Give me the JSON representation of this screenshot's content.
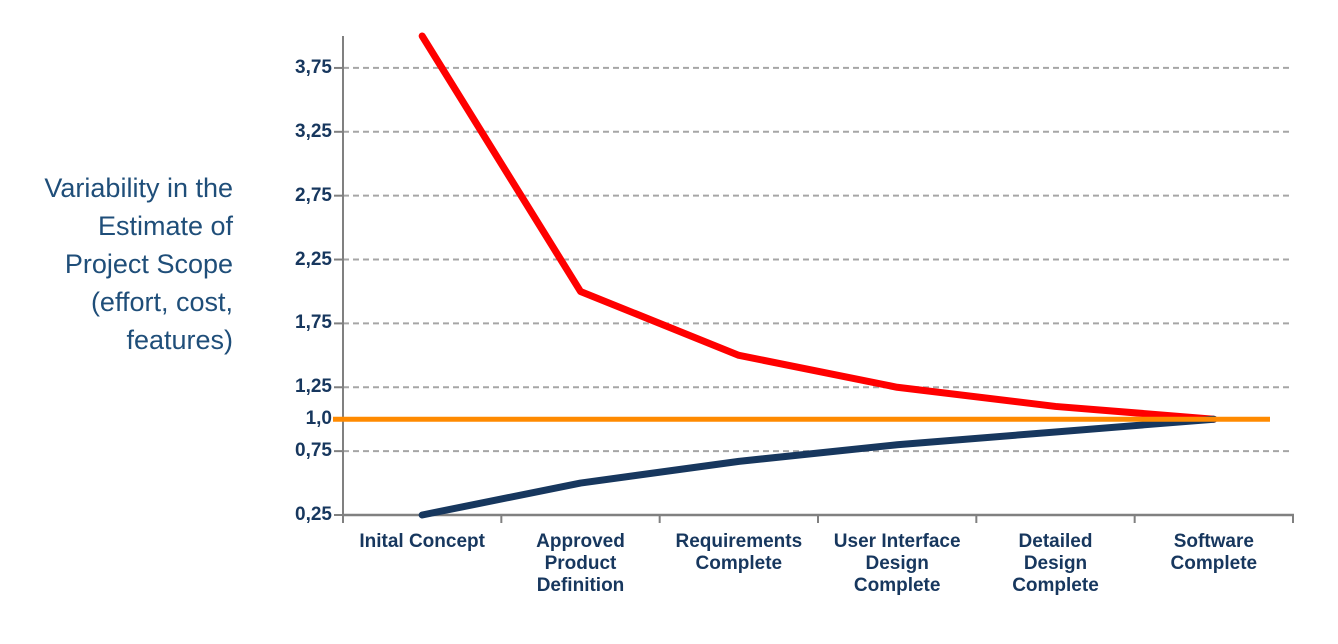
{
  "page": {
    "background_color": "#FFFFFF"
  },
  "side_label": {
    "lines": [
      "Variability in the",
      "Estimate of",
      "Project Scope",
      "(effort, cost,",
      "features)"
    ],
    "color": "#1F4E79"
  },
  "chart_data": {
    "type": "line",
    "title": "",
    "xlabel": "",
    "ylabel": "Variability in the Estimate of Project Scope (effort, cost, features)",
    "categories": [
      "Inital Concept",
      "Approved Product Definition",
      "Requirements Complete",
      "User Interface Design Complete",
      "Detailed Design Complete",
      "Software Complete"
    ],
    "category_label_lines": [
      [
        "Inital Concept"
      ],
      [
        "Approved",
        "Product",
        "Definition"
      ],
      [
        "Requirements",
        "Complete"
      ],
      [
        "User Interface",
        "Design",
        "Complete"
      ],
      [
        "Detailed",
        "Design",
        "Complete"
      ],
      [
        "Software",
        "Complete"
      ]
    ],
    "series": [
      {
        "name": "estimate-upper-bound",
        "color": "#FF0000",
        "stroke_width": 7,
        "values": [
          4.0,
          2.0,
          1.5,
          1.25,
          1.1,
          1.0
        ]
      },
      {
        "name": "estimate-lower-bound",
        "color": "#17375E",
        "stroke_width": 7,
        "values": [
          0.25,
          0.5,
          0.67,
          0.8,
          0.9,
          1.0
        ]
      }
    ],
    "baseline": {
      "name": "final-value-1x",
      "value": 1.0,
      "color": "#FF8A00",
      "stroke_width": 5
    },
    "ylim": [
      0.25,
      4.0
    ],
    "yticks": [
      {
        "value": 0.25,
        "label": "0,25"
      },
      {
        "value": 0.75,
        "label": "0,75"
      },
      {
        "value": 1.0,
        "label": "1,0"
      },
      {
        "value": 1.25,
        "label": "1,25"
      },
      {
        "value": 1.75,
        "label": "1,75"
      },
      {
        "value": 2.25,
        "label": "2,25"
      },
      {
        "value": 2.75,
        "label": "2,75"
      },
      {
        "value": 3.25,
        "label": "3,25"
      },
      {
        "value": 3.75,
        "label": "3,75"
      }
    ],
    "gridlines": [
      0.75,
      1.25,
      1.75,
      2.25,
      2.75,
      3.25,
      3.75
    ],
    "grid_style": "horizontal-dashed",
    "legend": "none",
    "grid_color": "#A6A6A6",
    "axis_color": "#808080",
    "tick_label_color": "#17375E"
  }
}
